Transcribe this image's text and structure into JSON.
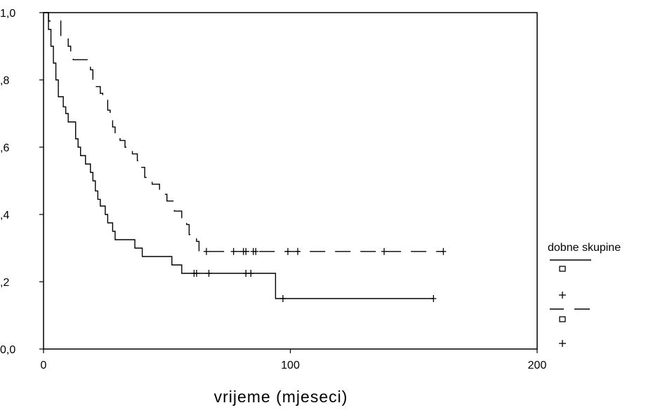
{
  "chart_data": {
    "type": "line",
    "xlabel": "vrijeme (mjeseci)",
    "ylabel": "",
    "xlim": [
      0,
      200
    ],
    "ylim": [
      0,
      1
    ],
    "x_ticks": [
      0,
      100,
      200
    ],
    "x_tick_labels": [
      "0",
      "100",
      "200"
    ],
    "y_ticks": [
      0,
      0.2,
      0.4,
      0.6,
      0.8,
      1.0
    ],
    "y_tick_labels": [
      "0,0",
      ",2",
      ",4",
      ",6",
      ",8",
      "1,0"
    ],
    "grid": false,
    "legend": {
      "title": "dobne skupine",
      "placement": "right",
      "entries": [
        "",
        "",
        "",
        ""
      ]
    },
    "series": [
      {
        "line_style": "solid",
        "color": "#000000",
        "steps": [
          [
            0,
            1.0
          ],
          [
            2,
            0.95
          ],
          [
            3,
            0.9
          ],
          [
            4,
            0.85
          ],
          [
            5,
            0.8
          ],
          [
            6,
            0.75
          ],
          [
            8,
            0.72
          ],
          [
            9,
            0.7
          ],
          [
            10,
            0.675
          ],
          [
            12,
            0.675
          ],
          [
            13,
            0.625
          ],
          [
            14,
            0.6
          ],
          [
            15,
            0.575
          ],
          [
            17,
            0.55
          ],
          [
            19,
            0.525
          ],
          [
            20,
            0.5
          ],
          [
            21,
            0.47
          ],
          [
            22,
            0.445
          ],
          [
            23,
            0.425
          ],
          [
            25,
            0.4
          ],
          [
            26,
            0.375
          ],
          [
            28,
            0.35
          ],
          [
            29,
            0.325
          ],
          [
            37,
            0.3
          ],
          [
            40,
            0.275
          ],
          [
            52,
            0.25
          ],
          [
            56,
            0.225
          ],
          [
            94,
            0.15
          ],
          [
            158,
            0.15
          ]
        ],
        "censored": [
          61,
          62,
          67,
          82,
          84,
          97,
          158
        ]
      },
      {
        "line_style": "dashed",
        "color": "#000000",
        "steps": [
          [
            0,
            1.0
          ],
          [
            2,
            0.975
          ],
          [
            7,
            0.93
          ],
          [
            10,
            0.9
          ],
          [
            11,
            0.87
          ],
          [
            12,
            0.86
          ],
          [
            19,
            0.83
          ],
          [
            20,
            0.8
          ],
          [
            21,
            0.78
          ],
          [
            23,
            0.76
          ],
          [
            24,
            0.74
          ],
          [
            26,
            0.71
          ],
          [
            27,
            0.69
          ],
          [
            28,
            0.66
          ],
          [
            29,
            0.64
          ],
          [
            31,
            0.62
          ],
          [
            33,
            0.6
          ],
          [
            36,
            0.58
          ],
          [
            38,
            0.56
          ],
          [
            39,
            0.54
          ],
          [
            41,
            0.51
          ],
          [
            44,
            0.49
          ],
          [
            47,
            0.46
          ],
          [
            50,
            0.44
          ],
          [
            53,
            0.41
          ],
          [
            56,
            0.39
          ],
          [
            58,
            0.37
          ],
          [
            59,
            0.34
          ],
          [
            62,
            0.32
          ],
          [
            63,
            0.29
          ],
          [
            162,
            0.29
          ]
        ],
        "censored": [
          66,
          77,
          81,
          82,
          85,
          86,
          99,
          103,
          138,
          162
        ]
      }
    ]
  }
}
